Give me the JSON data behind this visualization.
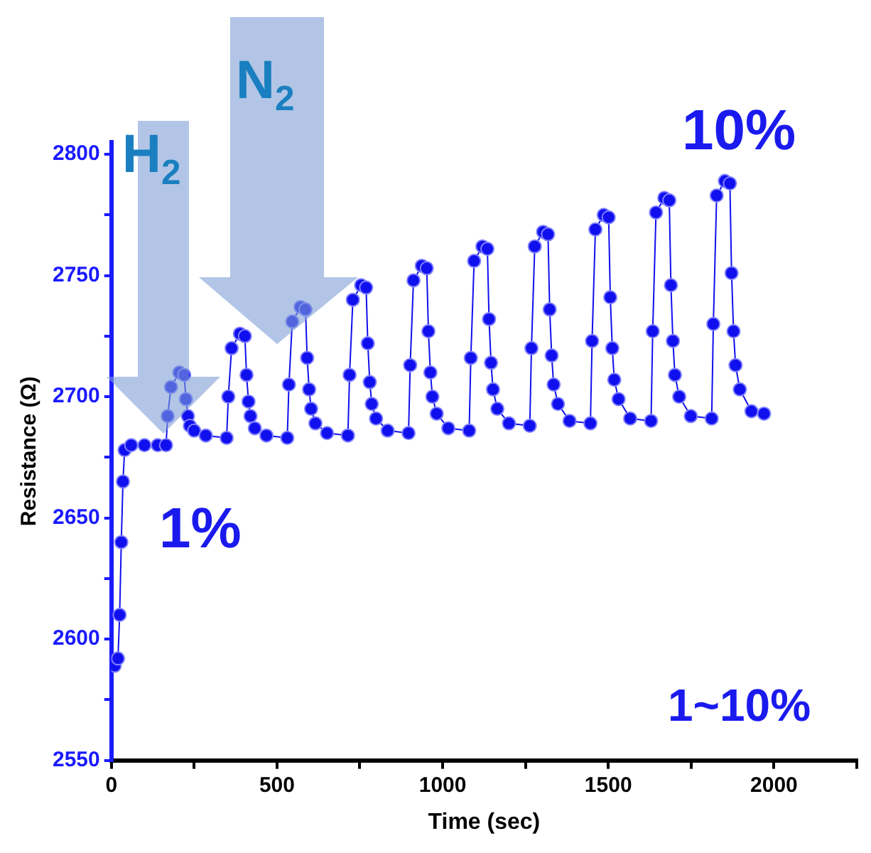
{
  "chart_data": {
    "type": "line",
    "xlabel": "Time (sec)",
    "ylabel": "Resistance (Ω)",
    "annotations": [
      "H$_{2}$",
      "N$_{2}$",
      "1%",
      "10%",
      "1~10%"
    ],
    "xlim": [
      0,
      2250
    ],
    "ylim": [
      2550,
      2805
    ],
    "xticks": [
      0,
      {
        "value": 250,
        "label": null
      },
      500,
      {
        "value": 750,
        "label": null
      },
      1000,
      {
        "value": 1250,
        "label": null
      },
      1500,
      {
        "value": 1750,
        "label": null
      },
      2000,
      {
        "value": 2250,
        "label": null
      }
    ],
    "yticks": [
      2550,
      {
        "value": 2575,
        "label": null
      },
      2600,
      {
        "value": 2625,
        "label": null
      },
      2650,
      {
        "value": 2675,
        "label": null
      },
      2700,
      {
        "value": 2725,
        "label": null
      },
      2750,
      {
        "value": 2775,
        "label": null
      },
      2800
    ],
    "grid": false,
    "legend": false,
    "marker": "circle",
    "line_style": "solid",
    "x": [
      0,
      10,
      20,
      25,
      30,
      35,
      40,
      60,
      100,
      140,
      165,
      170,
      180,
      205,
      220,
      225,
      231,
      237,
      250,
      285,
      348,
      353,
      363,
      388,
      403,
      408,
      414,
      420,
      433,
      468,
      531,
      536,
      546,
      571,
      586,
      591,
      597,
      603,
      616,
      651,
      714,
      719,
      729,
      754,
      769,
      774,
      780,
      786,
      799,
      834,
      897,
      902,
      912,
      937,
      952,
      957,
      963,
      969,
      982,
      1017,
      1080,
      1085,
      1095,
      1120,
      1135,
      1140,
      1146,
      1152,
      1165,
      1200,
      1263,
      1268,
      1278,
      1303,
      1318,
      1323,
      1329,
      1335,
      1348,
      1383,
      1446,
      1451,
      1461,
      1486,
      1501,
      1506,
      1512,
      1518,
      1531,
      1566,
      1629,
      1634,
      1644,
      1669,
      1684,
      1689,
      1695,
      1701,
      1714,
      1749,
      1812,
      1817,
      1827,
      1852,
      1867,
      1872,
      1878,
      1884,
      1897,
      1932,
      1970
    ],
    "series": [
      {
        "color": "#1010ee",
        "values": [
          2590,
          2589,
          2592,
          2610,
          2640,
          2665,
          2678,
          2680,
          2680,
          2680,
          2680,
          2692,
          2704,
          2710,
          2709,
          2699,
          2692,
          2688,
          2686,
          2684,
          2683,
          2700,
          2720,
          2726,
          2725,
          2709,
          2698,
          2692,
          2687,
          2684,
          2683,
          2705,
          2731,
          2737,
          2736,
          2716,
          2703,
          2695,
          2689,
          2685,
          2684,
          2709,
          2740,
          2746,
          2745,
          2722,
          2706,
          2697,
          2691,
          2686,
          2685,
          2713,
          2748,
          2754,
          2753,
          2727,
          2710,
          2700,
          2693,
          2687,
          2686,
          2716,
          2756,
          2762,
          2761,
          2732,
          2714,
          2703,
          2695,
          2689,
          2688,
          2720,
          2762,
          2768,
          2767,
          2736,
          2717,
          2705,
          2697,
          2690,
          2689,
          2723,
          2769,
          2775,
          2774,
          2741,
          2720,
          2707,
          2699,
          2691,
          2690,
          2727,
          2776,
          2782,
          2781,
          2746,
          2723,
          2709,
          2700,
          2692,
          2691,
          2730,
          2783,
          2789,
          2788,
          2751,
          2727,
          2713,
          2703,
          2694,
          2693
        ]
      }
    ]
  }
}
